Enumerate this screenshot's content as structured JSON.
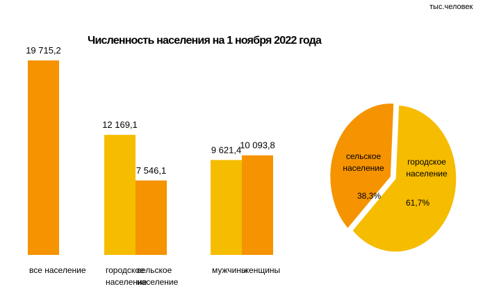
{
  "units": "тыс.человек",
  "chart_data": [
    {
      "type": "bar",
      "title": "Численность населения на 1 ноября 2022 года",
      "groups": [
        {
          "bars": [
            {
              "category": [
                "все население"
              ],
              "value": 19715.2,
              "label": "19 715,2",
              "color": "#f59300"
            }
          ]
        },
        {
          "bars": [
            {
              "category": [
                "городское",
                "население"
              ],
              "value": 12169.1,
              "label": "12 169,1",
              "color": "#f5bc00"
            },
            {
              "category": [
                "сельское",
                "население"
              ],
              "value": 7546.1,
              "label": "7 546,1",
              "color": "#f59300"
            }
          ]
        },
        {
          "bars": [
            {
              "category": [
                "мужчины"
              ],
              "value": 9621.4,
              "label": "9 621,4",
              "color": "#f5bc00"
            },
            {
              "category": [
                "женщины"
              ],
              "value": 10093.8,
              "label": "10 093,8",
              "color": "#f59300"
            }
          ]
        }
      ],
      "ylim": [
        0,
        19715.2
      ],
      "grid": false
    },
    {
      "type": "pie",
      "slices": [
        {
          "name": [
            "сельское",
            "население"
          ],
          "value": 38.3,
          "label": "38,3%",
          "color": "#f59300"
        },
        {
          "name": [
            "городское",
            "население"
          ],
          "value": 61.7,
          "label": "61,7%",
          "color": "#f5bc00"
        }
      ]
    }
  ]
}
